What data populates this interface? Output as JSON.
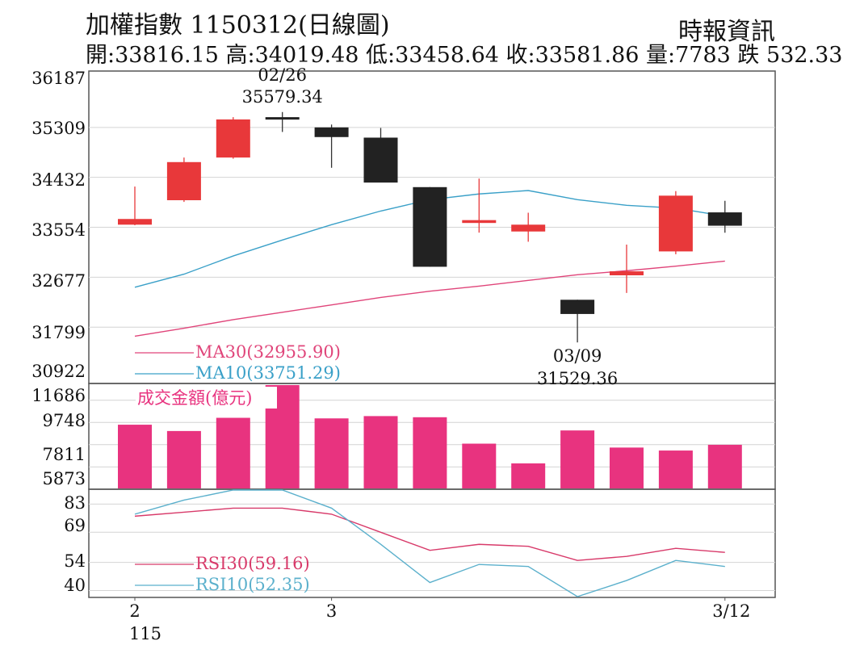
{
  "header": {
    "title": "加權指數 1150312(日線圖)",
    "source": "時報資訊",
    "stats": "開:33816.15 高:34019.48 低:33458.64 收:33581.86 量:7783 跌 532.33"
  },
  "colors": {
    "up": "#e8383a",
    "down": "#222222",
    "ma30": "#e0457a",
    "ma10": "#3aa0c8",
    "volume": "#e8337f",
    "rsi30": "#d83a6a",
    "rsi10": "#5bb0cc",
    "grid": "#d4d4d4",
    "frame": "#555555"
  },
  "chart_data": [
    {
      "type": "candlestick",
      "panel": "price",
      "ylim": [
        30922,
        36187
      ],
      "y_ticks": [
        "36187",
        "35309",
        "34432",
        "33554",
        "32677",
        "31799",
        "30922"
      ],
      "x_ticks": [
        {
          "index": 0,
          "label": "2",
          "sublabel": "115"
        },
        {
          "index": 4,
          "label": "3",
          "sublabel": ""
        },
        {
          "index": 12,
          "label": "3/12",
          "sublabel": ""
        }
      ],
      "candles": [
        {
          "open": 33600,
          "high": 34270,
          "low": 33590,
          "close": 33700
        },
        {
          "open": 34030,
          "high": 34780,
          "low": 34000,
          "close": 34700
        },
        {
          "open": 34780,
          "high": 35490,
          "low": 34760,
          "close": 35450
        },
        {
          "open": 35490,
          "high": 35580,
          "low": 35230,
          "close": 35470
        },
        {
          "open": 35310,
          "high": 35360,
          "low": 34600,
          "close": 35140
        },
        {
          "open": 35130,
          "high": 35300,
          "low": 34350,
          "close": 34340
        },
        {
          "open": 34260,
          "high": 34260,
          "low": 32860,
          "close": 32860
        },
        {
          "open": 33630,
          "high": 34410,
          "low": 33460,
          "close": 33680
        },
        {
          "open": 33480,
          "high": 33810,
          "low": 33300,
          "close": 33600
        },
        {
          "open": 32280,
          "high": 32280,
          "low": 31530,
          "close": 32030
        },
        {
          "open": 32710,
          "high": 33250,
          "low": 32400,
          "close": 32780
        },
        {
          "open": 33130,
          "high": 34190,
          "low": 33080,
          "close": 34110
        },
        {
          "open": 33816.15,
          "high": 34019.48,
          "low": 33458.64,
          "close": 33581.86
        }
      ],
      "series": [
        {
          "name": "MA30(32955.90)",
          "values": [
            31640,
            31780,
            31930,
            32060,
            32190,
            32320,
            32430,
            32520,
            32620,
            32720,
            32790,
            32870,
            32960
          ]
        },
        {
          "name": "MA10(33751.29)",
          "values": [
            32500,
            32730,
            33050,
            33330,
            33600,
            33840,
            34040,
            34140,
            34200,
            34040,
            33940,
            33890,
            33750
          ]
        }
      ],
      "annotations": [
        {
          "index": 3,
          "date": "02/26",
          "value": "35579.34",
          "position": "above"
        },
        {
          "index": 9,
          "date": "03/09",
          "value": "31529.36",
          "position": "below"
        }
      ]
    },
    {
      "type": "bar",
      "panel": "volume",
      "title": "成交金額(億元)",
      "ylim": [
        4000,
        13000
      ],
      "y_ticks": [
        "11686",
        "9748",
        "7811",
        "5873"
      ],
      "values": [
        9550,
        9000,
        10150,
        13000,
        10100,
        10300,
        10200,
        7900,
        6180,
        9050,
        7560,
        7300,
        7800
      ]
    },
    {
      "type": "line",
      "panel": "rsi",
      "ylim": [
        37,
        90
      ],
      "y_ticks": [
        "83",
        "69",
        "54",
        "40"
      ],
      "series": [
        {
          "name": "RSI30(59.16)",
          "values": [
            77,
            79,
            81,
            81,
            78,
            69,
            60,
            63,
            62,
            55,
            57,
            61,
            59
          ]
        },
        {
          "name": "RSI10(52.35)",
          "values": [
            78,
            85,
            90,
            90,
            81,
            63,
            44,
            53,
            52,
            37,
            45,
            55,
            52
          ]
        }
      ]
    }
  ]
}
